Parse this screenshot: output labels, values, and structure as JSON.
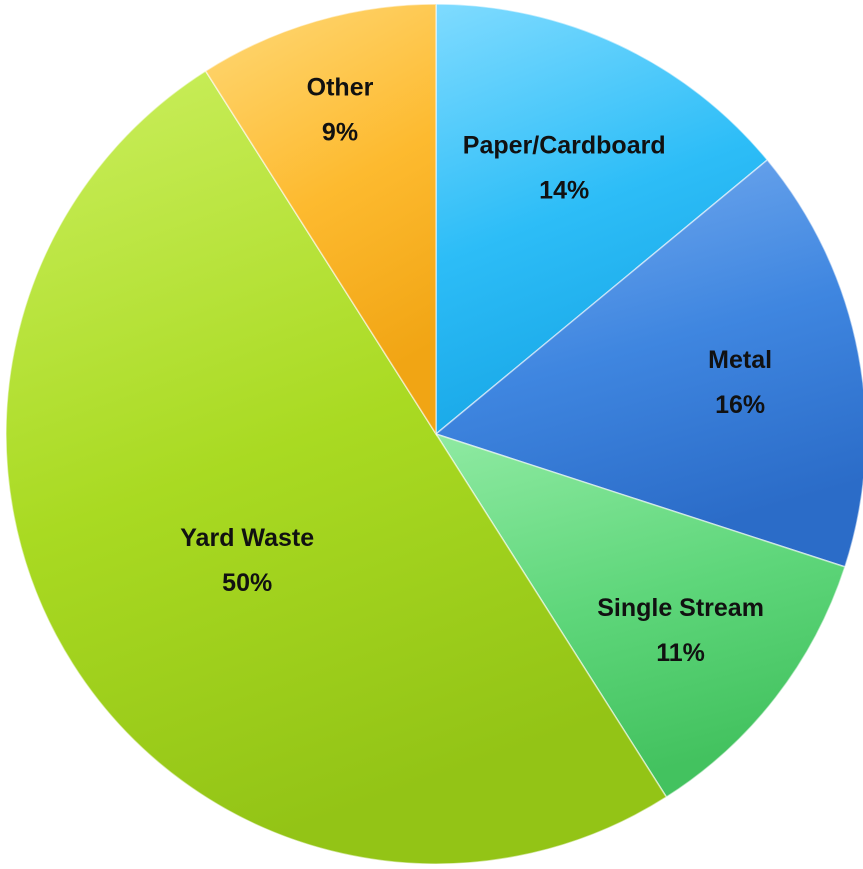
{
  "chart_data": {
    "type": "pie",
    "title": "",
    "slices": [
      {
        "name": "Paper/Cardboard",
        "value": 14,
        "percent_label": "14%",
        "color": "#2DBDF7",
        "highlight": "#7FDBFF",
        "shadow": "#17A6E6"
      },
      {
        "name": "Metal",
        "value": 16,
        "percent_label": "16%",
        "color": "#3F86E0",
        "highlight": "#78AEF0",
        "shadow": "#2B6CC8"
      },
      {
        "name": "Single Stream",
        "value": 11,
        "percent_label": "11%",
        "color": "#5ED67A",
        "highlight": "#8FEAA2",
        "shadow": "#43C25F"
      },
      {
        "name": "Yard Waste",
        "value": 50,
        "percent_label": "50%",
        "color": "#A9DA22",
        "highlight": "#CBEF5E",
        "shadow": "#93C416"
      },
      {
        "name": "Other",
        "value": 9,
        "percent_label": "9%",
        "color": "#FDBA2F",
        "highlight": "#FFD978",
        "shadow": "#F1A514"
      }
    ],
    "start_angle_deg": 0,
    "direction": "clockwise",
    "legend": "none",
    "data_labels": "inside"
  }
}
